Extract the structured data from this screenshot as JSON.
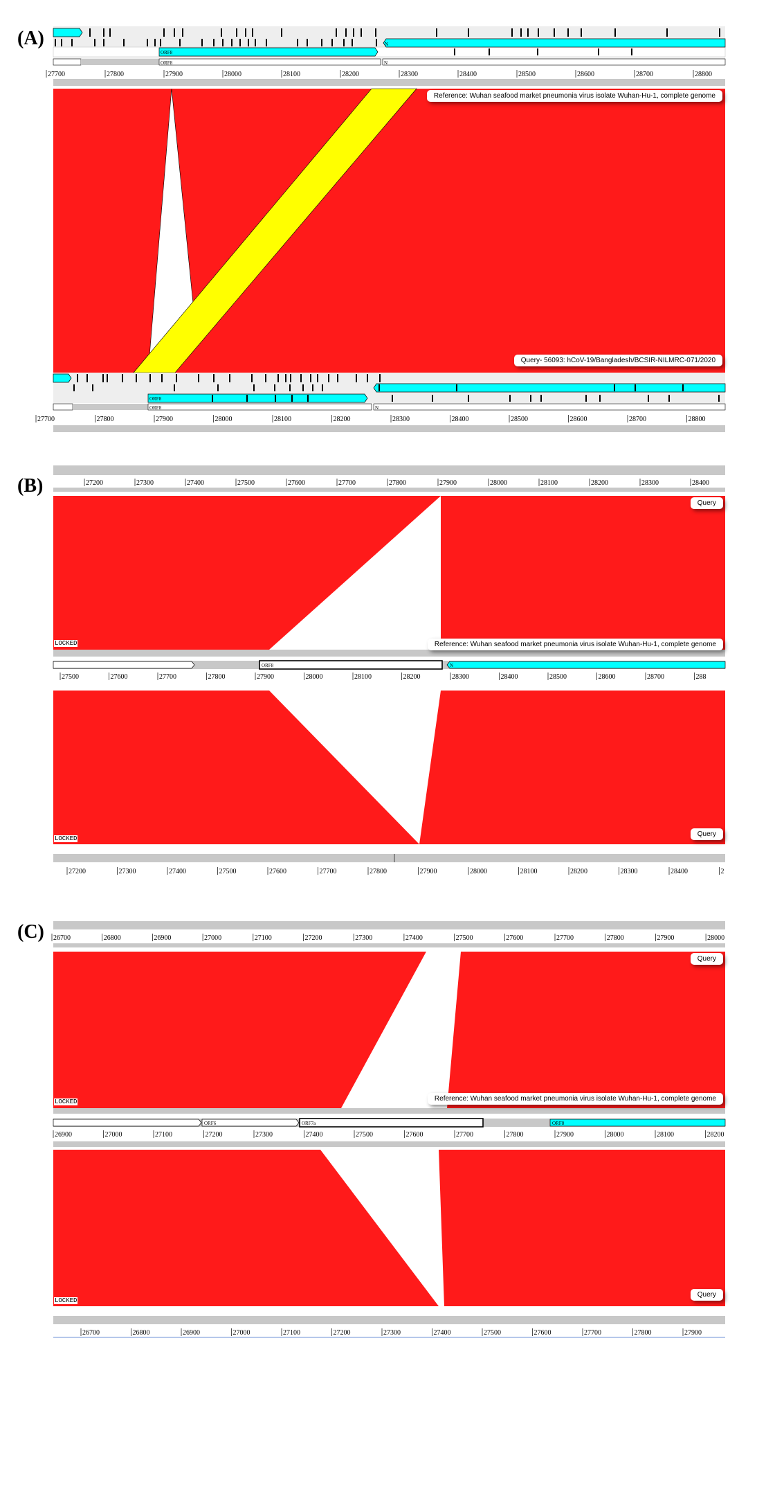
{
  "panels": {
    "A": {
      "label": "(A)",
      "ref_ruler": [
        "27700",
        "27800",
        "27900",
        "28000",
        "28100",
        "28200",
        "28300",
        "28400",
        "28500",
        "28600",
        "28700",
        "28800"
      ],
      "qry_ruler": [
        "27700",
        "27800",
        "27900",
        "28000",
        "28100",
        "28200",
        "28300",
        "28400",
        "28500",
        "28600",
        "28700",
        "28800"
      ],
      "ref_gene_orf8": "ORF8",
      "ref_gene_n": "N",
      "ref_gene_orf8_lower": "ORF8",
      "ref_gene_n_lower": "N",
      "qry_gene_orf8": "ORF8",
      "qry_gene_orf8_lower": "ORF8",
      "qry_gene_n_lower": "N",
      "reference_tip": "Reference: Wuhan seafood market pneumonia virus isolate Wuhan-Hu-1, complete genome",
      "query_tip": "Query- 56093: hCoV-19/Bangladesh/BCSIR-NILMRC-071/2020"
    },
    "B": {
      "label": "(B)",
      "top_ruler": [
        "27200",
        "27300",
        "27400",
        "27500",
        "27600",
        "27700",
        "27800",
        "27900",
        "28000",
        "28100",
        "28200",
        "28300",
        "28400"
      ],
      "mid_ruler": [
        "27500",
        "27600",
        "27700",
        "27800",
        "27900",
        "28000",
        "28100",
        "28200",
        "28300",
        "28400",
        "28500",
        "28600",
        "28700",
        "288"
      ],
      "bottom_ruler": [
        "27200",
        "27300",
        "27400",
        "27500",
        "27600",
        "27700",
        "27800",
        "27900",
        "28000",
        "28100",
        "28200",
        "28300",
        "28400",
        "2"
      ],
      "gene_orf8": "ORF8",
      "gene_n": "N",
      "locked_top": "LOCKED",
      "locked_bottom": "LOCKED",
      "query_top": "Query",
      "query_bottom": "Query",
      "reference_tip": "Reference: Wuhan seafood market pneumonia virus isolate Wuhan-Hu-1, complete genome"
    },
    "C": {
      "label": "(C)",
      "top_ruler": [
        "26700",
        "26800",
        "26900",
        "27000",
        "27100",
        "27200",
        "27300",
        "27400",
        "27500",
        "27600",
        "27700",
        "27800",
        "27900",
        "28000"
      ],
      "mid_ruler": [
        "26900",
        "27000",
        "27100",
        "27200",
        "27300",
        "27400",
        "27500",
        "27600",
        "27700",
        "27800",
        "27900",
        "28000",
        "28100",
        "28200"
      ],
      "bottom_ruler": [
        "26700",
        "26800",
        "26900",
        "27000",
        "27100",
        "27200",
        "27300",
        "27400",
        "27500",
        "27600",
        "27700",
        "27800",
        "27900"
      ],
      "gene_orf6": "ORF6",
      "gene_orf7a": "ORF7a",
      "gene_orf8": "ORF8",
      "locked_top": "LOCKED",
      "locked_bottom": "LOCKED",
      "query_top": "Query",
      "query_bottom": "Query",
      "reference_tip": "Reference: Wuhan seafood market pneumonia virus isolate Wuhan-Hu-1, complete genome"
    }
  },
  "colors": {
    "match_block": "#ff1a1a",
    "inverted_block": "#ffff00",
    "gene_feature": "#00ffff",
    "track_gray": "#c8c8c8",
    "track_light": "#eeeeee"
  }
}
